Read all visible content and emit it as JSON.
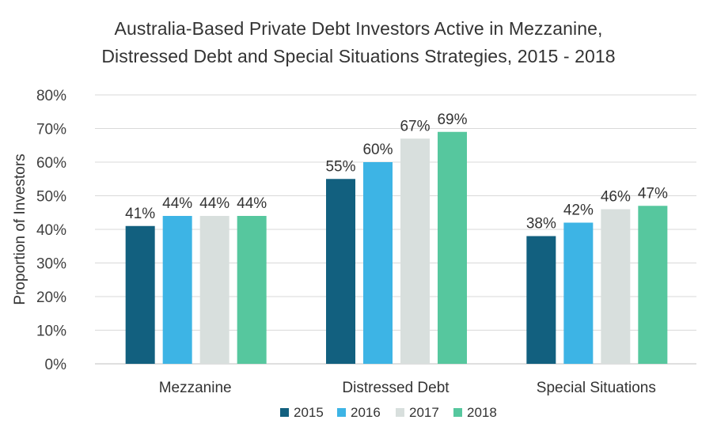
{
  "chart_data": {
    "type": "bar",
    "title_lines": [
      "Australia-Based Private Debt Investors Active in Mezzanine,",
      "Distressed Debt and Special Situations Strategies, 2015 - 2018"
    ],
    "ylabel": "Proportion of Investors",
    "xlabel": "",
    "categories": [
      "Mezzanine",
      "Distressed Debt",
      "Special Situations"
    ],
    "series": [
      {
        "name": "2015",
        "color": "#12607f",
        "values": [
          41,
          55,
          38
        ]
      },
      {
        "name": "2016",
        "color": "#3db4e5",
        "values": [
          44,
          60,
          42
        ]
      },
      {
        "name": "2017",
        "color": "#d8dfdd",
        "values": [
          44,
          67,
          46
        ]
      },
      {
        "name": "2018",
        "color": "#56c79e",
        "values": [
          44,
          69,
          47
        ]
      }
    ],
    "value_suffix": "%",
    "ylim": [
      0,
      80
    ],
    "yticks": [
      "0%",
      "10%",
      "20%",
      "30%",
      "40%",
      "50%",
      "60%",
      "70%",
      "80%"
    ],
    "grid": true,
    "gridline_color": "#d9d9d9",
    "legend_position": "bottom"
  }
}
